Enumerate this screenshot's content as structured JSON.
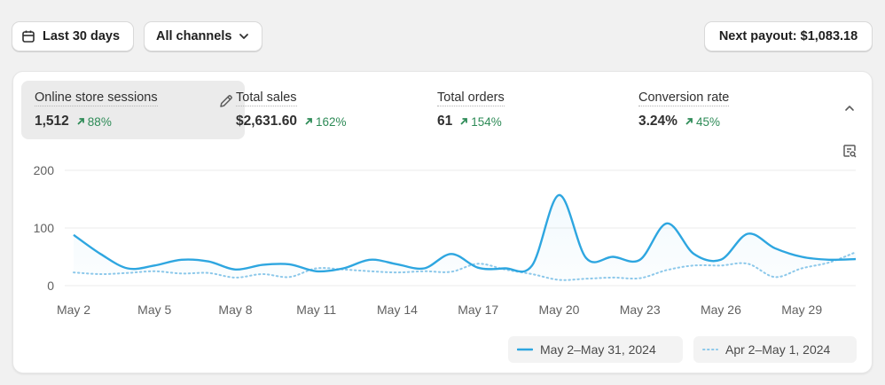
{
  "toolbar": {
    "date_range_label": "Last 30 days",
    "channels_label": "All channels",
    "payout_label": "Next payout: $1,083.18"
  },
  "metrics": [
    {
      "label": "Online store sessions",
      "value": "1,512",
      "change": "88%"
    },
    {
      "label": "Total sales",
      "value": "$2,631.60",
      "change": "162%"
    },
    {
      "label": "Total orders",
      "value": "61",
      "change": "154%"
    },
    {
      "label": "Conversion rate",
      "value": "3.24%",
      "change": "45%"
    }
  ],
  "colors": {
    "accent": "#2ea6e0",
    "trend_up": "#2e8b57"
  },
  "icons": {
    "calendar": "calendar-icon",
    "chevron": "chevron-down-icon",
    "edit": "pencil-icon",
    "collapse": "chevron-up-icon",
    "chart_settings": "chart-search-icon"
  },
  "chart_data": {
    "type": "line",
    "ylim": [
      0,
      200
    ],
    "yticks": [
      "0",
      "100",
      "200"
    ],
    "x_ticks": [
      "May 2",
      "May 5",
      "May 8",
      "May 11",
      "May 14",
      "May 17",
      "May 20",
      "May 23",
      "May 26",
      "May 29"
    ],
    "series": [
      {
        "name": "May 2–May 31, 2024",
        "style": "solid",
        "color": "#2ea6e0",
        "values": [
          88,
          55,
          30,
          35,
          45,
          42,
          28,
          36,
          37,
          25,
          30,
          45,
          37,
          30,
          55,
          31,
          30,
          35,
          157,
          48,
          50,
          45,
          108,
          55,
          45,
          90,
          65,
          50,
          45,
          46
        ]
      },
      {
        "name": "Apr 2–May 1, 2024",
        "style": "dotted",
        "color": "#8cc8ea",
        "values": [
          23,
          20,
          22,
          25,
          21,
          22,
          14,
          20,
          15,
          30,
          28,
          25,
          23,
          25,
          24,
          38,
          28,
          20,
          10,
          12,
          14,
          13,
          27,
          35,
          35,
          38,
          15,
          30,
          40,
          58
        ]
      }
    ],
    "grid": true,
    "legend_position": "bottom-right"
  }
}
